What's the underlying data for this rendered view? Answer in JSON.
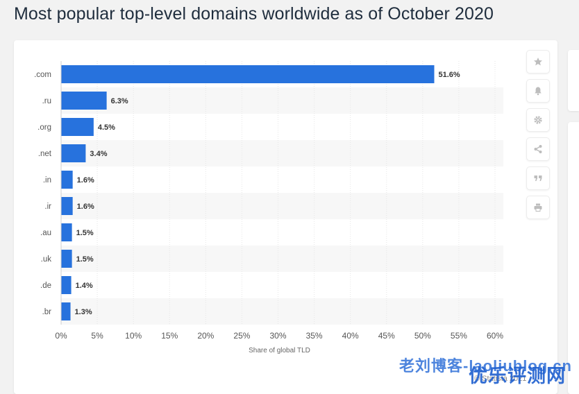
{
  "page": {
    "title": "Most popular top-level domains worldwide as of October 2020",
    "source": "© Statista 2021"
  },
  "watermark": {
    "text1": "老刘博客-laoliublog.cn",
    "text2": "优乐评测网"
  },
  "toolbar": [
    {
      "name": "favorite-icon"
    },
    {
      "name": "notification-icon"
    },
    {
      "name": "settings-icon"
    },
    {
      "name": "share-icon"
    },
    {
      "name": "citation-icon"
    },
    {
      "name": "print-icon"
    }
  ],
  "colors": {
    "bar": "#2772dd",
    "stripe": "#f7f7f7",
    "grid": "#e6e6e6",
    "text": "#555555",
    "label": "#333333"
  },
  "chart_data": {
    "type": "bar",
    "orientation": "horizontal",
    "categories": [
      ".com",
      ".ru",
      ".org",
      ".net",
      ".in",
      ".ir",
      ".au",
      ".uk",
      ".de",
      ".br"
    ],
    "values": [
      51.6,
      6.3,
      4.5,
      3.4,
      1.6,
      1.6,
      1.5,
      1.5,
      1.4,
      1.3
    ],
    "value_labels": [
      "51.6%",
      "6.3%",
      "4.5%",
      "3.4%",
      "1.6%",
      "1.6%",
      "1.5%",
      "1.5%",
      "1.4%",
      "1.3%"
    ],
    "xlabel": "Share of global TLD",
    "xlim": [
      0,
      60
    ],
    "xticks": [
      0,
      5,
      10,
      15,
      20,
      25,
      30,
      35,
      40,
      45,
      50,
      55,
      60
    ],
    "xtick_labels": [
      "0%",
      "5%",
      "10%",
      "15%",
      "20%",
      "25%",
      "30%",
      "35%",
      "40%",
      "45%",
      "50%",
      "55%",
      "60%"
    ],
    "grid": true,
    "legend": "none"
  }
}
